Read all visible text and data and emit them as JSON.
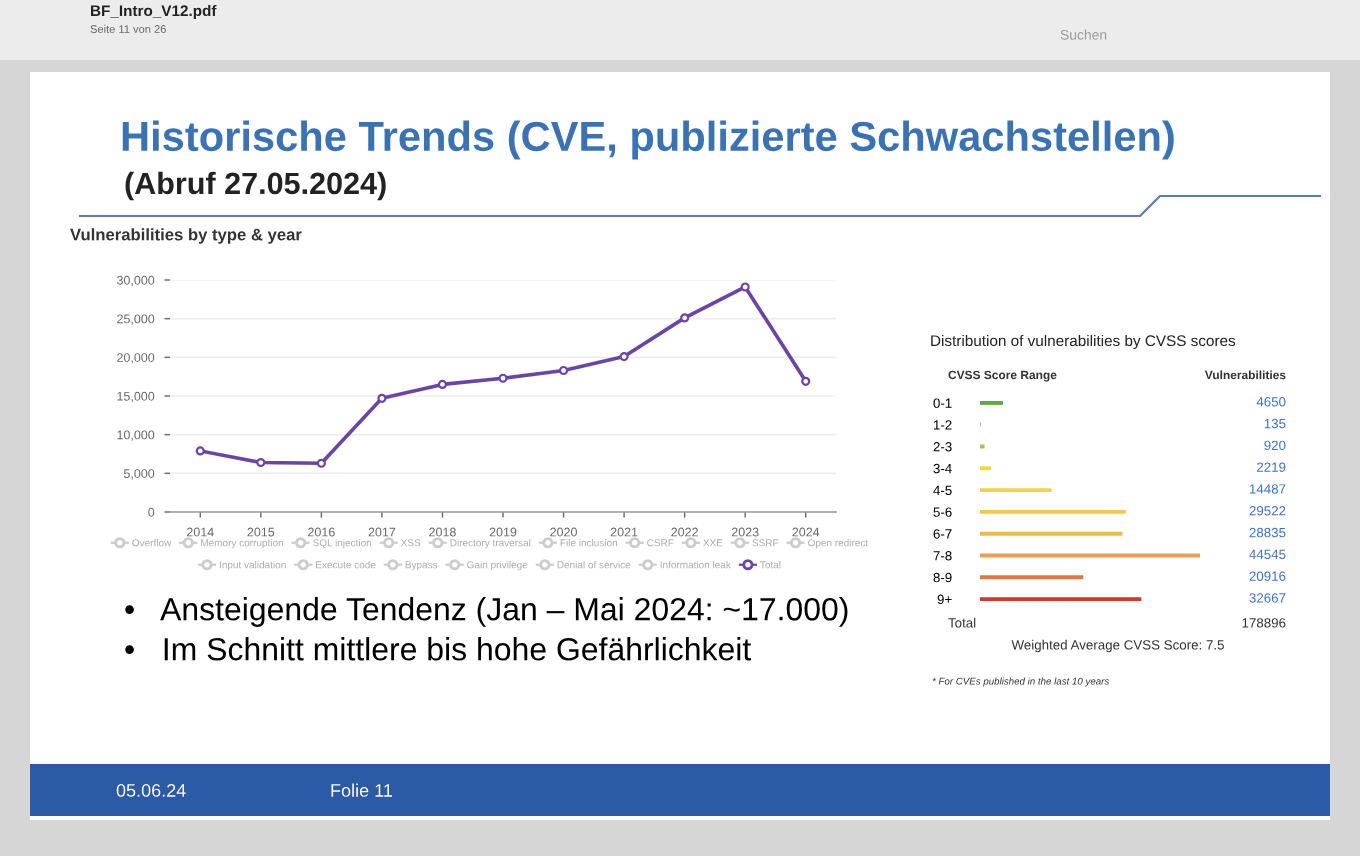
{
  "chart_data": [
    {
      "type": "line",
      "title": "Vulnerabilities by type & year",
      "categories": [
        "2014",
        "2015",
        "2016",
        "2017",
        "2018",
        "2019",
        "2020",
        "2021",
        "2022",
        "2023",
        "2024"
      ],
      "series": [
        {
          "name": "Overflow",
          "color": "#cccccc",
          "values": [
            null,
            null,
            null,
            null,
            null,
            null,
            null,
            null,
            null,
            null,
            null
          ]
        },
        {
          "name": "Memory corruption",
          "color": "#cccccc",
          "values": [
            null,
            null,
            null,
            null,
            null,
            null,
            null,
            null,
            null,
            null,
            null
          ]
        },
        {
          "name": "SQL injection",
          "color": "#cccccc",
          "values": [
            null,
            null,
            null,
            null,
            null,
            null,
            null,
            null,
            null,
            null,
            null
          ]
        },
        {
          "name": "XSS",
          "color": "#cccccc",
          "values": [
            null,
            null,
            null,
            null,
            null,
            null,
            null,
            null,
            null,
            null,
            null
          ]
        },
        {
          "name": "Directory traversal",
          "color": "#cccccc",
          "values": [
            null,
            null,
            null,
            null,
            null,
            null,
            null,
            null,
            null,
            null,
            null
          ]
        },
        {
          "name": "File inclusion",
          "color": "#cccccc",
          "values": [
            null,
            null,
            null,
            null,
            null,
            null,
            null,
            null,
            null,
            null,
            null
          ]
        },
        {
          "name": "CSRF",
          "color": "#cccccc",
          "values": [
            null,
            null,
            null,
            null,
            null,
            null,
            null,
            null,
            null,
            null,
            null
          ]
        },
        {
          "name": "XXE",
          "color": "#cccccc",
          "values": [
            null,
            null,
            null,
            null,
            null,
            null,
            null,
            null,
            null,
            null,
            null
          ]
        },
        {
          "name": "SSRF",
          "color": "#cccccc",
          "values": [
            null,
            null,
            null,
            null,
            null,
            null,
            null,
            null,
            null,
            null,
            null
          ]
        },
        {
          "name": "Open redirect",
          "color": "#cccccc",
          "values": [
            null,
            null,
            null,
            null,
            null,
            null,
            null,
            null,
            null,
            null,
            null
          ]
        },
        {
          "name": "Input validation",
          "color": "#cccccc",
          "values": [
            null,
            null,
            null,
            null,
            null,
            null,
            null,
            null,
            null,
            null,
            null
          ]
        },
        {
          "name": "Execute code",
          "color": "#cccccc",
          "values": [
            null,
            null,
            null,
            null,
            null,
            null,
            null,
            null,
            null,
            null,
            null
          ]
        },
        {
          "name": "Bypass",
          "color": "#cccccc",
          "values": [
            null,
            null,
            null,
            null,
            null,
            null,
            null,
            null,
            null,
            null,
            null
          ]
        },
        {
          "name": "Gain privilege",
          "color": "#cccccc",
          "values": [
            null,
            null,
            null,
            null,
            null,
            null,
            null,
            null,
            null,
            null,
            null
          ]
        },
        {
          "name": "Denial of service",
          "color": "#cccccc",
          "values": [
            null,
            null,
            null,
            null,
            null,
            null,
            null,
            null,
            null,
            null,
            null
          ]
        },
        {
          "name": "Information leak",
          "color": "#cccccc",
          "values": [
            null,
            null,
            null,
            null,
            null,
            null,
            null,
            null,
            null,
            null,
            null
          ]
        },
        {
          "name": "Total",
          "color": "#6a45a8",
          "values": [
            7900,
            6400,
            6300,
            14700,
            16500,
            17300,
            18300,
            20100,
            25100,
            29100,
            16900
          ]
        }
      ],
      "ylim": [
        0,
        30000
      ],
      "yticks": [
        0,
        {
          "value": 5000,
          "label": "5,000"
        },
        {
          "value": 10000,
          "label": "10,000"
        },
        {
          "value": 15000,
          "label": "15,000"
        },
        {
          "value": 20000,
          "label": "20,000"
        },
        {
          "value": 25000,
          "label": "25,000"
        },
        {
          "value": 30000,
          "label": "30,000"
        }
      ],
      "grid": "y",
      "legend": "bottom",
      "marker": "circle",
      "line_style": "solid",
      "annotations": [
        "BF_Intro_V12.pdf",
        "Seite 11 von 26",
        "Suchen",
        "Historische Trends (CVE, publizierte Schwachstellen)",
        "(Abruf 27.05.2024)",
        "•   Ansteigende Tendenz (Jan – Mai 2024: ~17.000)",
        "•   Im Schnitt mittlere bis hohe Gefährlichkeit",
        "05.06.24",
        "Folie 11"
      ]
    },
    {
      "type": "bar",
      "orientation": "horizontal",
      "title": "Distribution of vulnerabilities by CVSS scores",
      "categories": [
        "0-1",
        "1-2",
        "2-3",
        "3-4",
        "4-5",
        "5-6",
        "6-7",
        "7-8",
        "8-9",
        "9+"
      ],
      "values": [
        4650,
        135,
        920,
        2219,
        14487,
        29522,
        28835,
        44545,
        20916,
        32667
      ],
      "colors": [
        "#5aaa3c",
        "#7cb342",
        "#9ccc3a",
        "#e8dc3c",
        "#f2d24a",
        "#f4c64a",
        "#f1b84c",
        "#ef9d52",
        "#e5773a",
        "#d8352a"
      ],
      "data_labels": true,
      "annotations": [
        "CVSS Score Range",
        "Vulnerabilities",
        "Total",
        "178896",
        "Weighted Average CVSS Score: 7.5",
        "* For CVEs published in the last 10 years"
      ]
    }
  ]
}
